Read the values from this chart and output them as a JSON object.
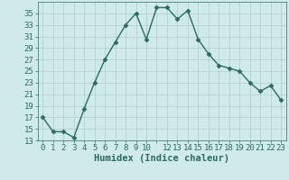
{
  "x": [
    0,
    1,
    2,
    3,
    4,
    5,
    6,
    7,
    8,
    9,
    10,
    11,
    12,
    13,
    14,
    15,
    16,
    17,
    18,
    19,
    20,
    21,
    22,
    23
  ],
  "y": [
    17,
    14.5,
    14.5,
    13.5,
    18.5,
    23,
    27,
    30,
    33,
    35,
    30.5,
    36,
    36,
    34,
    35.5,
    30.5,
    28,
    26,
    25.5,
    25,
    23,
    21.5,
    22.5,
    20
  ],
  "line_color": "#2e6b5e",
  "marker": "D",
  "marker_size": 2.5,
  "bg_color": "#ceeaea",
  "grid_color": "#b0cccc",
  "xlabel": "Humidex (Indice chaleur)",
  "xlim": [
    -0.5,
    23.5
  ],
  "ylim": [
    13,
    37
  ],
  "yticks": [
    13,
    15,
    17,
    19,
    21,
    23,
    25,
    27,
    29,
    31,
    33,
    35
  ],
  "xtick_labels": [
    "0",
    "1",
    "2",
    "3",
    "4",
    "5",
    "6",
    "7",
    "8",
    "9",
    "10",
    "",
    "12",
    "13",
    "14",
    "15",
    "16",
    "17",
    "18",
    "19",
    "20",
    "21",
    "22",
    "23"
  ],
  "xticks": [
    0,
    1,
    2,
    3,
    4,
    5,
    6,
    7,
    8,
    9,
    10,
    11,
    12,
    13,
    14,
    15,
    16,
    17,
    18,
    19,
    20,
    21,
    22,
    23
  ],
  "xlabel_fontsize": 7.5,
  "tick_fontsize": 6.5,
  "line_width": 1.0
}
